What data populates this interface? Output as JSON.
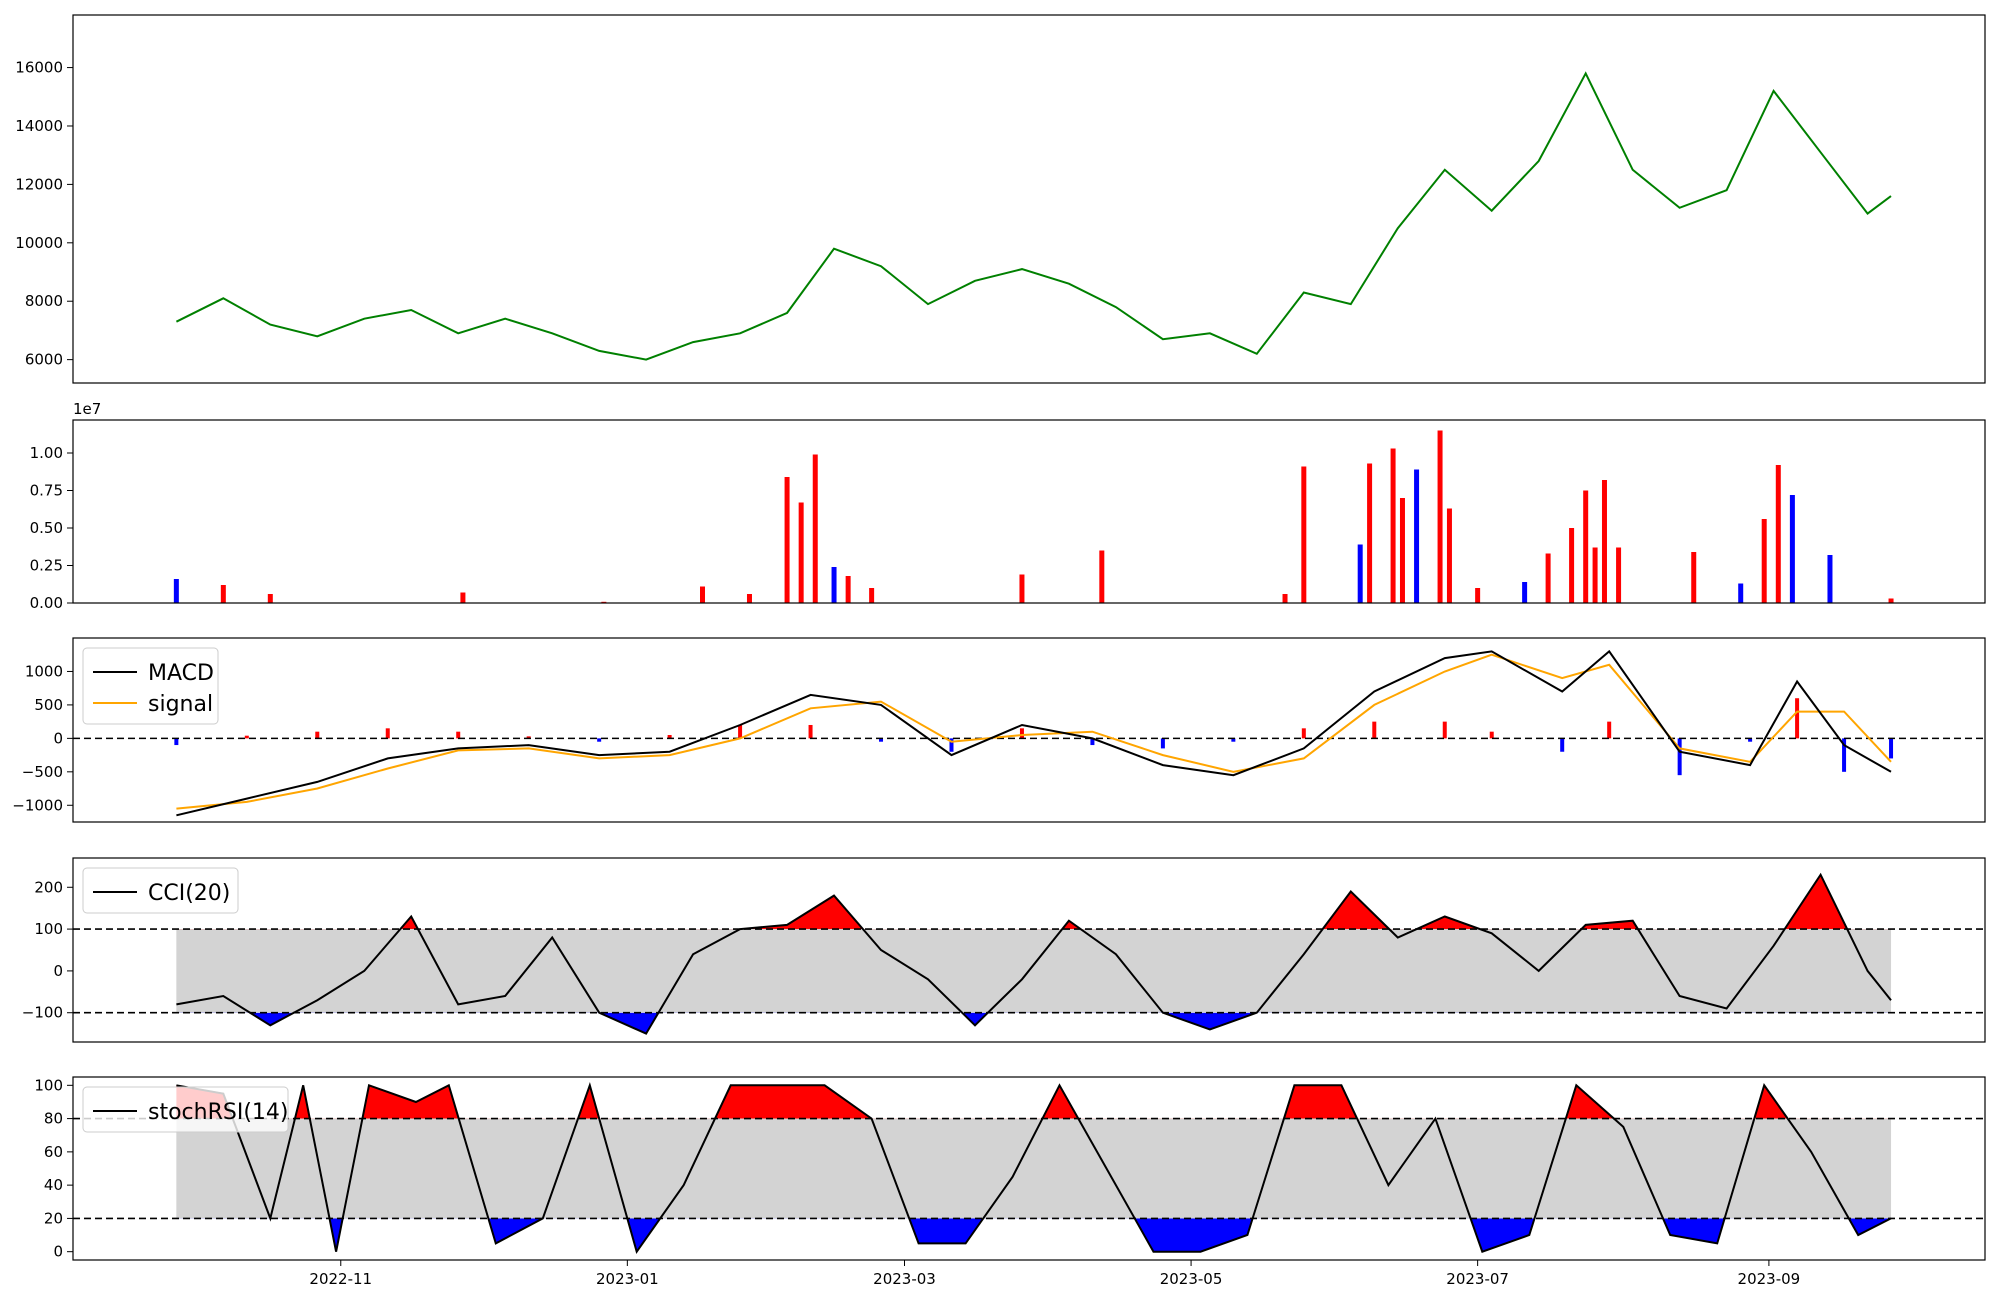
{
  "chart_data": [
    {
      "type": "line",
      "panel": "price",
      "ylim": [
        5200,
        17800
      ],
      "yticks": [
        6000,
        8000,
        10000,
        12000,
        14000,
        16000
      ],
      "ytick_labels": [
        "6000",
        "8000",
        "10000",
        "12000",
        "14000",
        "16000"
      ],
      "x": [
        "2022-09-27",
        "2022-10-07",
        "2022-10-17",
        "2022-10-27",
        "2022-11-06",
        "2022-11-16",
        "2022-11-26",
        "2022-12-06",
        "2022-12-16",
        "2022-12-26",
        "2023-01-05",
        "2023-01-15",
        "2023-01-25",
        "2023-02-04",
        "2023-02-14",
        "2023-02-24",
        "2023-03-06",
        "2023-03-16",
        "2023-03-26",
        "2023-04-05",
        "2023-04-15",
        "2023-04-25",
        "2023-05-05",
        "2023-05-15",
        "2023-05-25",
        "2023-06-04",
        "2023-06-14",
        "2023-06-24",
        "2023-07-04",
        "2023-07-14",
        "2023-07-24",
        "2023-08-03",
        "2023-08-13",
        "2023-08-23",
        "2023-09-02",
        "2023-09-12",
        "2023-09-22",
        "2023-09-27"
      ],
      "series": [
        {
          "color": "#008000",
          "values": [
            7300,
            8100,
            7200,
            6800,
            7400,
            7700,
            6900,
            7400,
            6900,
            6300,
            6000,
            6600,
            6900,
            7600,
            9800,
            9200,
            7900,
            8700,
            9100,
            8600,
            7800,
            6700,
            6900,
            6200,
            8300,
            7900,
            10500,
            12500,
            11100,
            12800,
            15800,
            12500,
            11200,
            11800,
            15200,
            13100,
            11000,
            11600
          ]
        }
      ]
    },
    {
      "type": "bar",
      "panel": "volume",
      "ylim": [
        0,
        12200000
      ],
      "yticks": [
        0,
        2500000,
        5000000,
        7500000,
        10000000
      ],
      "ytick_labels": [
        "0.00",
        "0.25",
        "0.50",
        "0.75",
        "1.00"
      ],
      "offset_label": "1e7",
      "x": [
        "2022-09-27",
        "2022-10-07",
        "2022-10-17",
        "2022-11-27",
        "2022-12-27",
        "2023-01-17",
        "2023-01-27",
        "2023-02-04",
        "2023-02-07",
        "2023-02-10",
        "2023-02-14",
        "2023-02-17",
        "2023-02-22",
        "2023-03-26",
        "2023-04-12",
        "2023-05-21",
        "2023-05-25",
        "2023-06-06",
        "2023-06-08",
        "2023-06-13",
        "2023-06-15",
        "2023-06-18",
        "2023-06-23",
        "2023-06-25",
        "2023-07-01",
        "2023-07-11",
        "2023-07-16",
        "2023-07-21",
        "2023-07-24",
        "2023-07-26",
        "2023-07-28",
        "2023-07-31",
        "2023-08-16",
        "2023-08-26",
        "2023-08-31",
        "2023-09-03",
        "2023-09-06",
        "2023-09-14",
        "2023-09-27"
      ],
      "values": [
        1600000,
        1200000,
        600000,
        700000,
        80000,
        1100000,
        600000,
        8400000,
        6700000,
        9900000,
        2400000,
        1800000,
        1000000,
        1900000,
        3500000,
        600000,
        9100000,
        3900000,
        9300000,
        10300000,
        7000000,
        8900000,
        11500000,
        6300000,
        1000000,
        1400000,
        3300000,
        5000000,
        7500000,
        3700000,
        8200000,
        3700000,
        3400000,
        1300000,
        5600000,
        9200000,
        7200000,
        3200000,
        300000
      ],
      "colors": [
        "#0000ff",
        "#ff0000",
        "#ff0000",
        "#ff0000",
        "#ff0000",
        "#ff0000",
        "#ff0000",
        "#ff0000",
        "#ff0000",
        "#ff0000",
        "#0000ff",
        "#ff0000",
        "#ff0000",
        "#ff0000",
        "#ff0000",
        "#ff0000",
        "#ff0000",
        "#0000ff",
        "#ff0000",
        "#ff0000",
        "#ff0000",
        "#0000ff",
        "#ff0000",
        "#ff0000",
        "#ff0000",
        "#0000ff",
        "#ff0000",
        "#ff0000",
        "#ff0000",
        "#ff0000",
        "#ff0000",
        "#ff0000",
        "#ff0000",
        "#0000ff",
        "#ff0000",
        "#ff0000",
        "#0000ff",
        "#0000ff",
        "#ff0000"
      ]
    },
    {
      "type": "line",
      "panel": "macd",
      "ylim": [
        -1250,
        1500
      ],
      "yticks": [
        -1000,
        -500,
        0,
        500,
        1000
      ],
      "ytick_labels": [
        "−1000",
        "−500",
        "0",
        "500",
        "1000"
      ],
      "zero_line": 0,
      "legend": {
        "position": "upper-left",
        "entries": [
          "MACD",
          "signal"
        ]
      },
      "x": [
        "2022-09-27",
        "2022-10-12",
        "2022-10-27",
        "2022-11-11",
        "2022-11-26",
        "2022-12-11",
        "2022-12-26",
        "2023-01-10",
        "2023-01-25",
        "2023-02-09",
        "2023-02-24",
        "2023-03-11",
        "2023-03-26",
        "2023-04-10",
        "2023-04-25",
        "2023-05-10",
        "2023-05-25",
        "2023-06-09",
        "2023-06-24",
        "2023-07-04",
        "2023-07-19",
        "2023-07-29",
        "2023-08-13",
        "2023-08-28",
        "2023-09-07",
        "2023-09-17",
        "2023-09-27"
      ],
      "series": [
        {
          "name": "MACD",
          "color": "#000000",
          "values": [
            -1150,
            -900,
            -650,
            -300,
            -150,
            -100,
            -250,
            -200,
            200,
            650,
            500,
            -250,
            200,
            0,
            -400,
            -550,
            -150,
            700,
            1200,
            1300,
            700,
            1300,
            -200,
            -400,
            850,
            -100,
            -500
          ]
        },
        {
          "name": "signal",
          "color": "#ffa500",
          "values": [
            -1050,
            -950,
            -750,
            -450,
            -180,
            -150,
            -300,
            -250,
            0,
            450,
            550,
            -50,
            50,
            100,
            -250,
            -500,
            -300,
            500,
            1000,
            1250,
            900,
            1100,
            -150,
            -350,
            400,
            400,
            -350
          ]
        },
        {
          "name": "histogram",
          "values": [
            -100,
            40,
            100,
            150,
            100,
            30,
            -50,
            50,
            200,
            200,
            -50,
            -200,
            150,
            -100,
            -150,
            -50,
            150,
            250,
            250,
            100,
            -200,
            250,
            -550,
            -50,
            600,
            -500,
            -300
          ]
        }
      ]
    },
    {
      "type": "line",
      "panel": "cci",
      "ylim": [
        -170,
        270
      ],
      "yticks": [
        -100,
        0,
        100,
        200
      ],
      "ytick_labels": [
        "−100",
        "0",
        "100",
        "200"
      ],
      "thresholds": [
        100,
        -100
      ],
      "legend": {
        "position": "upper-left",
        "entries": [
          "CCI(20)"
        ]
      },
      "x": [
        "2022-09-27",
        "2022-10-07",
        "2022-10-17",
        "2022-10-27",
        "2022-11-06",
        "2022-11-16",
        "2022-11-26",
        "2022-12-06",
        "2022-12-16",
        "2022-12-26",
        "2023-01-05",
        "2023-01-15",
        "2023-01-25",
        "2023-02-04",
        "2023-02-14",
        "2023-02-24",
        "2023-03-06",
        "2023-03-16",
        "2023-03-26",
        "2023-04-05",
        "2023-04-15",
        "2023-04-25",
        "2023-05-05",
        "2023-05-15",
        "2023-05-25",
        "2023-06-04",
        "2023-06-14",
        "2023-06-24",
        "2023-07-04",
        "2023-07-14",
        "2023-07-24",
        "2023-08-03",
        "2023-08-13",
        "2023-08-23",
        "2023-09-02",
        "2023-09-12",
        "2023-09-22",
        "2023-09-27"
      ],
      "series": [
        {
          "name": "CCI(20)",
          "color": "#000000",
          "values": [
            -80,
            -60,
            -130,
            -70,
            0,
            130,
            -80,
            -60,
            80,
            -100,
            -150,
            40,
            100,
            110,
            180,
            50,
            -20,
            -130,
            -20,
            120,
            40,
            -100,
            -140,
            -100,
            40,
            190,
            80,
            130,
            90,
            0,
            110,
            120,
            -60,
            -90,
            60,
            230,
            0,
            -70
          ]
        }
      ]
    },
    {
      "type": "line",
      "panel": "stochrsi",
      "ylim": [
        -5,
        105
      ],
      "yticks": [
        0,
        20,
        40,
        60,
        80,
        100
      ],
      "ytick_labels": [
        "0",
        "20",
        "40",
        "60",
        "80",
        "100"
      ],
      "thresholds": [
        80,
        20
      ],
      "legend": {
        "position": "upper-left",
        "entries": [
          "stochRSI(14)"
        ]
      },
      "x_tick_labels": [
        "2022-11",
        "2023-01",
        "2023-03",
        "2023-05",
        "2023-07",
        "2023-09"
      ],
      "x": [
        "2022-09-27",
        "2022-10-07",
        "2022-10-17",
        "2022-10-24",
        "2022-10-31",
        "2022-11-07",
        "2022-11-17",
        "2022-11-24",
        "2022-12-04",
        "2022-12-14",
        "2022-12-24",
        "2023-01-03",
        "2023-01-13",
        "2023-01-23",
        "2023-02-02",
        "2023-02-12",
        "2023-02-22",
        "2023-03-04",
        "2023-03-14",
        "2023-03-24",
        "2023-04-03",
        "2023-04-13",
        "2023-04-23",
        "2023-05-03",
        "2023-05-13",
        "2023-05-23",
        "2023-06-02",
        "2023-06-12",
        "2023-06-22",
        "2023-07-02",
        "2023-07-12",
        "2023-07-22",
        "2023-08-01",
        "2023-08-11",
        "2023-08-21",
        "2023-08-31",
        "2023-09-10",
        "2023-09-20",
        "2023-09-27"
      ],
      "series": [
        {
          "name": "stochRSI(14)",
          "color": "#000000",
          "values": [
            100,
            95,
            20,
            100,
            0,
            100,
            90,
            100,
            5,
            20,
            100,
            0,
            40,
            100,
            100,
            100,
            80,
            5,
            5,
            45,
            100,
            50,
            0,
            0,
            10,
            100,
            100,
            40,
            80,
            0,
            10,
            100,
            75,
            10,
            5,
            100,
            60,
            10,
            20
          ]
        }
      ]
    }
  ]
}
